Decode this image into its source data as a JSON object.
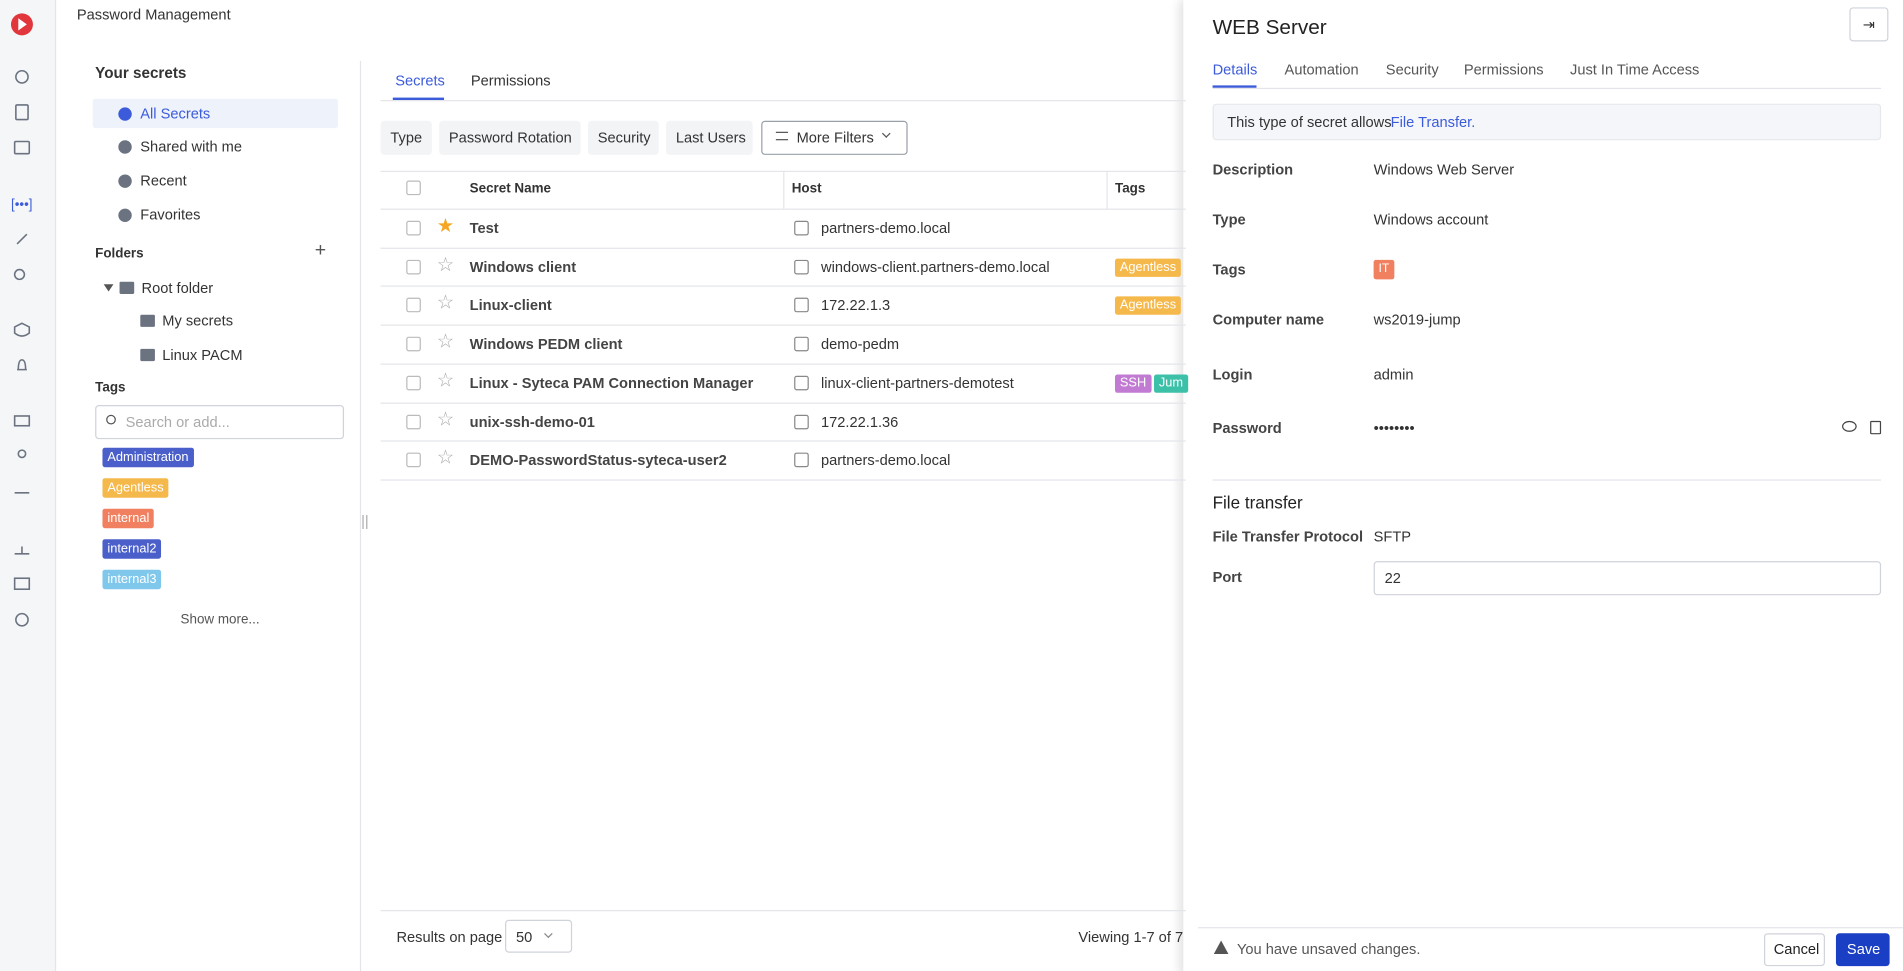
{
  "header": {
    "title": "Password Management"
  },
  "sidebar": {
    "heading": "Your secrets",
    "nav": [
      "All Secrets",
      "Shared with me",
      "Recent",
      "Favorites"
    ],
    "folders_heading": "Folders",
    "folders": [
      "Root folder",
      "My secrets",
      "Linux PACM"
    ],
    "tags_heading": "Tags",
    "tag_search_placeholder": "Search or add...",
    "tags": [
      {
        "label": "Administration",
        "color": "#4a5fc9"
      },
      {
        "label": "Agentless",
        "color": "#f5b84a"
      },
      {
        "label": "internal",
        "color": "#f08060"
      },
      {
        "label": "internal2",
        "color": "#4a5fc9"
      },
      {
        "label": "internal3",
        "color": "#7fc8ec"
      }
    ],
    "show_more": "Show more..."
  },
  "tabs": [
    "Secrets",
    "Permissions"
  ],
  "filters": [
    "Type",
    "Password Rotation",
    "Security",
    "Last Users",
    "More Filters"
  ],
  "table": {
    "columns": [
      "Secret Name",
      "Host",
      "Tags"
    ],
    "rows": [
      {
        "name": "Test",
        "host": "partners-demo.local",
        "tags": [],
        "starred": true
      },
      {
        "name": "Windows client",
        "host": "windows-client.partners-demo.local",
        "tags": [
          "Agentless"
        ],
        "starred": false
      },
      {
        "name": "Linux-client",
        "host": "172.22.1.3",
        "tags": [
          "Agentless"
        ],
        "starred": false
      },
      {
        "name": "Windows PEDM client",
        "host": "demo-pedm",
        "tags": [],
        "starred": false
      },
      {
        "name": "Linux - Syteca PAM Connection Manager",
        "host": "linux-client-partners-demotest",
        "tags": [
          "SSH",
          "Jum"
        ],
        "starred": false
      },
      {
        "name": "unix-ssh-demo-01",
        "host": "172.22.1.36",
        "tags": [],
        "starred": false
      },
      {
        "name": "DEMO-PasswordStatus-syteca-user2",
        "host": "partners-demo.local",
        "tags": [],
        "starred": false
      }
    ]
  },
  "footer": {
    "results_label": "Results on page",
    "page_size": "50",
    "viewing": "Viewing 1-7 of 7"
  },
  "panel": {
    "title": "WEB Server",
    "tabs": [
      "Details",
      "Automation",
      "Security",
      "Permissions",
      "Just In Time Access"
    ],
    "info_text": "This type of secret allows",
    "info_link": "File Transfer.",
    "fields": [
      {
        "label": "Description",
        "value": "Windows Web Server"
      },
      {
        "label": "Type",
        "value": "Windows account"
      },
      {
        "label": "Tags",
        "value": "IT"
      },
      {
        "label": "Computer name",
        "value": "ws2019-jump"
      },
      {
        "label": "Login",
        "value": "admin"
      },
      {
        "label": "Password",
        "value": "••••••••"
      }
    ],
    "section_title": "File transfer",
    "protocol": {
      "label": "File Transfer Protocol",
      "value": "SFTP"
    },
    "port": {
      "label": "Port",
      "value": "22"
    },
    "unsaved": "You have unsaved changes.",
    "cancel": "Cancel",
    "save": "Save"
  }
}
